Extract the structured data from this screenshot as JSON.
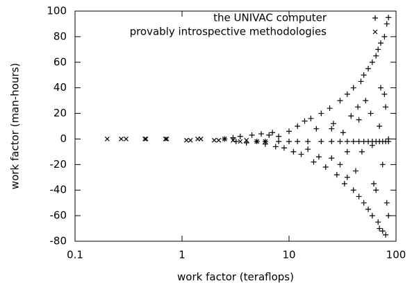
{
  "chart_data": {
    "type": "scatter",
    "xlabel": "work factor (teraflops)",
    "ylabel": "work factor (man-hours)",
    "xlog": true,
    "xlim": [
      0.1,
      100
    ],
    "xticks": [
      0.1,
      1,
      10,
      100
    ],
    "ylim": [
      -80,
      100
    ],
    "yticks": [
      -80,
      -60,
      -40,
      -20,
      0,
      20,
      40,
      60,
      80,
      100
    ],
    "legend": "top-right",
    "series": [
      {
        "name": "the UNIVAC computer",
        "marker": "plus",
        "color": "#000000",
        "x": [
          2.5,
          3,
          3.2,
          3.5,
          4,
          4.5,
          5,
          5.5,
          6,
          6.5,
          7,
          7.5,
          8,
          9,
          10,
          11,
          12,
          13,
          14,
          15,
          16,
          17,
          18,
          19,
          20,
          22,
          24,
          25,
          26,
          28,
          30,
          30,
          32,
          33,
          35,
          35,
          38,
          40,
          40,
          42,
          44,
          45,
          47,
          48,
          50,
          50,
          52,
          55,
          55,
          58,
          60,
          60,
          62,
          65,
          65,
          68,
          68,
          70,
          70,
          72,
          72,
          75,
          75,
          78,
          78,
          80,
          80,
          82,
          82,
          85,
          85,
          85,
          60,
          45,
          35,
          25,
          6,
          8,
          10,
          12,
          15,
          20,
          25,
          30,
          35,
          40,
          45,
          50,
          55,
          60,
          65,
          70,
          75,
          80,
          85
        ],
        "values": [
          0,
          1,
          -2,
          2,
          -3,
          3,
          -2,
          4,
          -4,
          3,
          5,
          -6,
          2,
          -7,
          6,
          -10,
          10,
          -12,
          14,
          -8,
          16,
          -18,
          8,
          -14,
          20,
          -22,
          24,
          -15,
          12,
          -28,
          30,
          -20,
          5,
          -35,
          35,
          -30,
          18,
          -40,
          40,
          -25,
          25,
          -45,
          45,
          -10,
          50,
          -50,
          30,
          -55,
          55,
          20,
          -60,
          60,
          -35,
          65,
          -40,
          70,
          -65,
          10,
          -70,
          75,
          40,
          -72,
          -20,
          80,
          35,
          -75,
          25,
          90,
          -50,
          95,
          -60,
          0,
          -5,
          15,
          -10,
          8,
          -2,
          -2,
          -2,
          -2,
          -2,
          -2,
          -2,
          -2,
          -2,
          -2,
          -2,
          -2,
          -2,
          -2,
          -2,
          -2,
          -2,
          -2,
          -2
        ]
      },
      {
        "name": "provably introspective methodologies",
        "marker": "cross",
        "color": "#000000",
        "x": [
          0.2,
          0.27,
          0.3,
          0.45,
          0.46,
          0.7,
          0.72,
          1.1,
          1.2,
          1.4,
          1.5,
          2.0,
          2.2,
          2.5,
          3,
          3.5,
          4,
          5,
          6
        ],
        "values": [
          0,
          0,
          0,
          0,
          0,
          0,
          0,
          -1,
          -1,
          0,
          0,
          -1,
          -1,
          0,
          -1,
          -2,
          -1,
          -2,
          -2
        ]
      }
    ]
  }
}
